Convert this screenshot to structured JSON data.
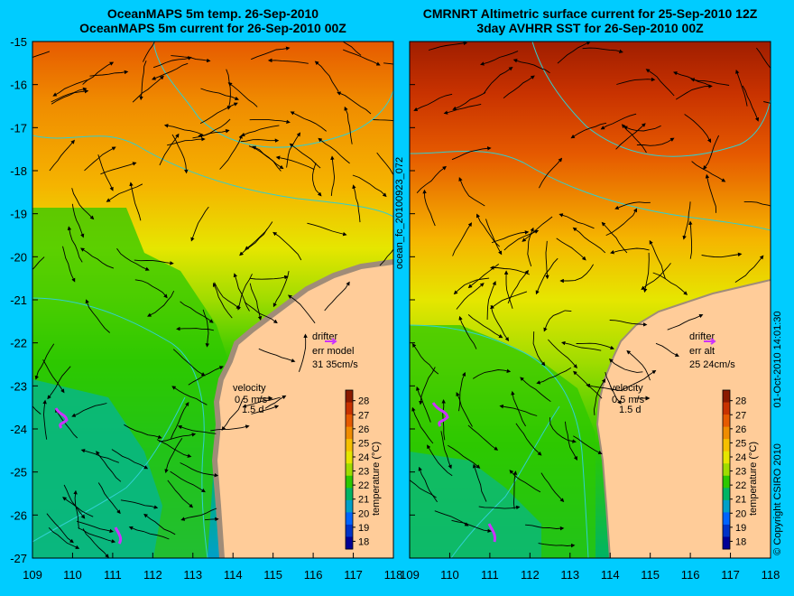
{
  "left_panel": {
    "title_line1": "OceanMAPS 5m temp. 26-Sep-2010",
    "title_line2": "OceanMAPS 5m current for 26-Sep-2010 00Z",
    "drifter_label": "drifter",
    "drifter_err": "err model",
    "drifter_value": "31 35cm/s",
    "velocity_label": "velocity",
    "velocity_scale": "0.5 m/s",
    "velocity_time": "1.5 d"
  },
  "right_panel": {
    "title_line1": "CMRNRT Altimetric surface current for 25-Sep-2010 12Z",
    "title_line2": "3day AVHRR SST for 26-Sep-2010 00Z",
    "drifter_label": "drifter",
    "drifter_err": "err alt",
    "drifter_value": "25 24cm/s",
    "velocity_label": "velocity",
    "velocity_scale": "0.5 m/s",
    "velocity_time": "1.5 d"
  },
  "side_labels": {
    "forecast_id": "ocean_fc_20100923_072",
    "copyright": "© Copyright CSIRO 2010",
    "timestamp": "01-Oct-2010 14:01:30"
  },
  "axes": {
    "x_ticks": [
      "109",
      "110",
      "111",
      "112",
      "113",
      "114",
      "115",
      "116",
      "117",
      "118"
    ],
    "y_ticks": [
      "-15",
      "-16",
      "-17",
      "-18",
      "-19",
      "-20",
      "-21",
      "-22",
      "-23",
      "-24",
      "-25",
      "-26",
      "-27"
    ]
  },
  "colorbar": {
    "label": "temperature (°C)",
    "ticks": [
      "28",
      "27",
      "26",
      "25",
      "24",
      "23",
      "22",
      "21",
      "20",
      "19",
      "18"
    ],
    "colors": [
      "#8b1a00",
      "#c83200",
      "#e65a00",
      "#f08c00",
      "#f5c000",
      "#e6e600",
      "#a0dc00",
      "#2dc800",
      "#00b464",
      "#00a0c8",
      "#0064ff",
      "#0032c8",
      "#000096"
    ]
  },
  "colors": {
    "background": "#00ccff",
    "land": "#ffcc99",
    "coastline": "#a08c78",
    "contour": "#30d0d0",
    "drifter": "#cc33ff"
  }
}
